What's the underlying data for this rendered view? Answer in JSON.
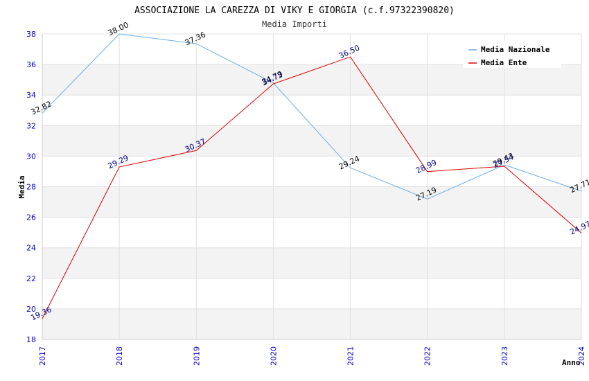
{
  "chart_data": {
    "type": "line",
    "title": "ASSOCIAZIONE LA CAREZZA DI VIKY E GIORGIA (c.f.97322390820)",
    "subtitle": "Media Importi",
    "xlabel": "Anno",
    "ylabel": "Media",
    "x": [
      "2017",
      "2018",
      "2019",
      "2020",
      "2021",
      "2022",
      "2023",
      "2024"
    ],
    "ylim": [
      18,
      38
    ],
    "yticks": [
      18,
      20,
      22,
      24,
      26,
      28,
      30,
      32,
      34,
      36,
      38
    ],
    "grid": true,
    "legend_position": "top-right",
    "series": [
      {
        "name": "Media Nazionale",
        "color": "#6aaee8",
        "label_color": "#000000",
        "values": [
          32.82,
          38.0,
          37.36,
          34.79,
          29.24,
          27.19,
          29.43,
          27.71
        ],
        "labels": [
          "32.82",
          "38.00",
          "37.36",
          "34.79",
          "29.24",
          "27.19",
          "29.43",
          "27.71"
        ]
      },
      {
        "name": "Media Ente",
        "color": "#dd0000",
        "label_color": "#000080",
        "values": [
          19.36,
          29.29,
          30.37,
          34.73,
          36.5,
          28.99,
          29.34,
          24.97
        ],
        "labels": [
          "19.36",
          "29.29",
          "30.37",
          "34.73",
          "36.50",
          "28.99",
          "29.34",
          "24.97"
        ]
      }
    ]
  }
}
